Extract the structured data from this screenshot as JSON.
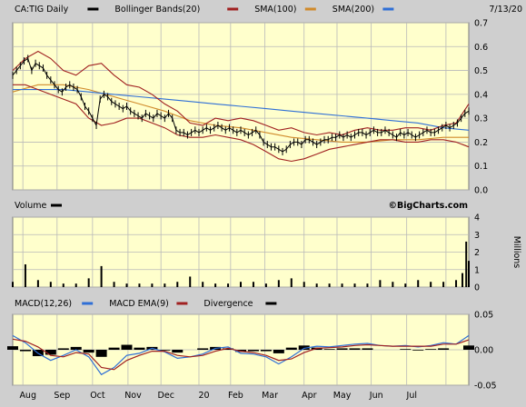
{
  "colors": {
    "background": "#cfcfcf",
    "plot_bg": "#ffffcc",
    "grid": "#b9b9b9",
    "price": "#000000",
    "bollinger": "#a02020",
    "sma100": "#d08a2a",
    "sma200": "#2f6fd6",
    "volume": "#000000",
    "macd": "#2f6fd6",
    "macd_ema": "#a02020",
    "divergence": "#000000"
  },
  "chart_data": [
    {
      "type": "line",
      "panel": "price",
      "legend": [
        {
          "label": "CA:TIG Daily",
          "color": "#000000"
        },
        {
          "label": "Bollinger Bands(20)",
          "color": "#a02020"
        },
        {
          "label": "SMA(100)",
          "color": "#d08a2a"
        },
        {
          "label": "SMA(200)",
          "color": "#2f6fd6"
        }
      ],
      "date_label": "7/13/20",
      "watermark": "©BigCharts.com",
      "y_ticks": [
        "0.7",
        "0.6",
        "0.5",
        "0.4",
        "0.3",
        "0.2",
        "0.1",
        "0.0"
      ],
      "ylim": [
        0.0,
        0.7
      ],
      "x_ticks": [
        "Aug",
        "Sep",
        "Oct",
        "Nov",
        "Dec",
        "20",
        "Feb",
        "Mar",
        "Apr",
        "May",
        "Jun",
        "Jul"
      ],
      "grid": true,
      "series": [
        {
          "name": "CA:TIG Daily",
          "x": [
            0,
            3,
            6,
            9,
            12,
            15,
            18,
            21,
            24,
            27,
            30,
            33,
            36,
            39,
            42,
            45,
            48,
            51,
            54,
            57,
            60,
            63,
            66,
            69,
            72,
            75,
            78,
            81,
            84,
            87,
            90,
            93,
            96,
            99,
            102,
            105,
            108,
            111,
            114,
            117,
            120,
            123,
            126,
            129,
            132,
            135,
            138,
            141,
            144,
            147,
            150,
            153,
            156,
            159,
            162,
            165,
            168,
            171,
            174,
            177,
            180,
            183,
            186,
            189,
            192,
            195,
            198,
            201,
            204,
            207,
            210,
            213,
            216,
            219,
            222,
            225,
            228,
            231,
            234,
            237,
            240,
            243,
            246,
            249,
            252,
            255,
            258,
            261,
            264,
            267,
            270,
            273,
            276,
            279,
            282,
            285,
            288,
            291,
            294,
            297,
            300,
            303,
            306,
            309,
            312,
            315,
            318,
            321,
            324,
            327,
            330,
            333,
            336,
            339,
            342,
            345,
            348,
            351,
            354,
            357,
            360
          ],
          "y": [
            0.48,
            0.5,
            0.52,
            0.54,
            0.55,
            0.5,
            0.53,
            0.52,
            0.51,
            0.48,
            0.46,
            0.44,
            0.42,
            0.41,
            0.43,
            0.44,
            0.43,
            0.42,
            0.39,
            0.35,
            0.33,
            0.3,
            0.27,
            0.38,
            0.4,
            0.39,
            0.37,
            0.36,
            0.35,
            0.34,
            0.35,
            0.33,
            0.32,
            0.31,
            0.3,
            0.32,
            0.31,
            0.3,
            0.32,
            0.31,
            0.3,
            0.32,
            0.3,
            0.25,
            0.24,
            0.24,
            0.23,
            0.24,
            0.25,
            0.24,
            0.25,
            0.26,
            0.25,
            0.26,
            0.27,
            0.26,
            0.25,
            0.26,
            0.25,
            0.24,
            0.25,
            0.24,
            0.23,
            0.24,
            0.25,
            0.23,
            0.2,
            0.19,
            0.18,
            0.18,
            0.17,
            0.16,
            0.17,
            0.19,
            0.2,
            0.2,
            0.19,
            0.21,
            0.21,
            0.2,
            0.19,
            0.2,
            0.21,
            0.21,
            0.22,
            0.22,
            0.23,
            0.22,
            0.23,
            0.22,
            0.23,
            0.24,
            0.24,
            0.23,
            0.24,
            0.25,
            0.24,
            0.24,
            0.25,
            0.24,
            0.23,
            0.22,
            0.24,
            0.23,
            0.24,
            0.23,
            0.22,
            0.23,
            0.24,
            0.25,
            0.24,
            0.24,
            0.25,
            0.26,
            0.27,
            0.26,
            0.27,
            0.28,
            0.3,
            0.32,
            0.33
          ]
        },
        {
          "name": "Bollinger Bands(20) upper",
          "x": [
            0,
            10,
            20,
            30,
            40,
            50,
            60,
            70,
            80,
            90,
            100,
            110,
            120,
            130,
            140,
            150,
            160,
            170,
            180,
            190,
            200,
            210,
            220,
            230,
            240,
            250,
            260,
            270,
            280,
            290,
            300,
            310,
            320,
            330,
            340,
            350,
            360
          ],
          "y": [
            0.5,
            0.55,
            0.58,
            0.55,
            0.5,
            0.48,
            0.52,
            0.53,
            0.48,
            0.44,
            0.43,
            0.4,
            0.36,
            0.33,
            0.28,
            0.27,
            0.3,
            0.29,
            0.3,
            0.29,
            0.27,
            0.25,
            0.26,
            0.24,
            0.23,
            0.24,
            0.23,
            0.25,
            0.26,
            0.25,
            0.25,
            0.26,
            0.26,
            0.25,
            0.27,
            0.28,
            0.36
          ]
        },
        {
          "name": "Bollinger Bands(20) lower",
          "x": [
            0,
            10,
            20,
            30,
            40,
            50,
            60,
            70,
            80,
            90,
            100,
            110,
            120,
            130,
            140,
            150,
            160,
            170,
            180,
            190,
            200,
            210,
            220,
            230,
            240,
            250,
            260,
            270,
            280,
            290,
            300,
            310,
            320,
            330,
            340,
            350,
            360
          ],
          "y": [
            0.44,
            0.44,
            0.42,
            0.4,
            0.38,
            0.36,
            0.3,
            0.27,
            0.28,
            0.3,
            0.3,
            0.28,
            0.26,
            0.23,
            0.22,
            0.22,
            0.23,
            0.22,
            0.21,
            0.19,
            0.16,
            0.13,
            0.12,
            0.13,
            0.15,
            0.17,
            0.18,
            0.19,
            0.2,
            0.21,
            0.21,
            0.2,
            0.2,
            0.21,
            0.21,
            0.2,
            0.18
          ]
        },
        {
          "name": "SMA(100)",
          "x": [
            0,
            20,
            40,
            60,
            80,
            100,
            120,
            140,
            160,
            180,
            200,
            220,
            240,
            260,
            280,
            300,
            320,
            340,
            360
          ],
          "y": [
            0.41,
            0.44,
            0.44,
            0.42,
            0.39,
            0.36,
            0.33,
            0.29,
            0.27,
            0.26,
            0.24,
            0.22,
            0.21,
            0.2,
            0.2,
            0.21,
            0.21,
            0.22,
            0.22
          ]
        },
        {
          "name": "SMA(200)",
          "x": [
            0,
            20,
            40,
            60,
            80,
            100,
            120,
            140,
            160,
            180,
            200,
            220,
            240,
            260,
            280,
            300,
            320,
            340,
            360
          ],
          "y": [
            0.42,
            0.42,
            0.42,
            0.41,
            0.4,
            0.39,
            0.38,
            0.37,
            0.36,
            0.35,
            0.34,
            0.33,
            0.32,
            0.31,
            0.3,
            0.29,
            0.28,
            0.26,
            0.25
          ]
        }
      ]
    },
    {
      "type": "bar",
      "panel": "volume",
      "title": "Volume",
      "ylabel": "Millions",
      "y_ticks": [
        "4",
        "3",
        "2",
        "1",
        "0"
      ],
      "ylim": [
        0,
        4
      ],
      "x": [
        0,
        10,
        20,
        30,
        40,
        50,
        60,
        70,
        80,
        90,
        100,
        110,
        120,
        130,
        140,
        150,
        160,
        170,
        180,
        190,
        200,
        210,
        220,
        230,
        240,
        250,
        260,
        270,
        280,
        290,
        300,
        310,
        320,
        330,
        340,
        350,
        355,
        358,
        360
      ],
      "values": [
        0.3,
        1.3,
        0.4,
        0.3,
        0.2,
        0.2,
        0.5,
        1.2,
        0.3,
        0.2,
        0.2,
        0.2,
        0.2,
        0.3,
        0.6,
        0.3,
        0.2,
        0.2,
        0.3,
        0.3,
        0.2,
        0.4,
        0.5,
        0.3,
        0.2,
        0.2,
        0.2,
        0.2,
        0.2,
        0.4,
        0.3,
        0.2,
        0.4,
        0.3,
        0.3,
        0.4,
        0.8,
        2.6,
        1.5
      ]
    },
    {
      "type": "line",
      "panel": "macd",
      "legend": [
        {
          "label": "MACD(12,26)",
          "color": "#2f6fd6"
        },
        {
          "label": "MACD EMA(9)",
          "color": "#a02020"
        },
        {
          "label": "Divergence",
          "color": "#000000"
        }
      ],
      "y_ticks": [
        "0.05",
        "0.00",
        "-0.05"
      ],
      "ylim": [
        -0.05,
        0.05
      ],
      "series": [
        {
          "name": "MACD(12,26)",
          "x": [
            0,
            10,
            20,
            30,
            40,
            50,
            60,
            70,
            80,
            90,
            100,
            110,
            120,
            130,
            140,
            150,
            160,
            170,
            180,
            190,
            200,
            210,
            220,
            230,
            240,
            250,
            260,
            270,
            280,
            290,
            300,
            310,
            320,
            330,
            340,
            350,
            360
          ],
          "y": [
            0.02,
            0.01,
            -0.005,
            -0.015,
            -0.008,
            0.0,
            -0.01,
            -0.035,
            -0.025,
            -0.008,
            -0.005,
            0.002,
            -0.003,
            -0.012,
            -0.01,
            -0.006,
            0.002,
            0.004,
            -0.005,
            -0.006,
            -0.01,
            -0.02,
            -0.01,
            0.002,
            0.005,
            0.004,
            0.006,
            0.008,
            0.009,
            0.006,
            0.005,
            0.006,
            0.004,
            0.006,
            0.01,
            0.008,
            0.02
          ]
        },
        {
          "name": "MACD EMA(9)",
          "x": [
            0,
            10,
            20,
            30,
            40,
            50,
            60,
            70,
            80,
            90,
            100,
            110,
            120,
            130,
            140,
            150,
            160,
            170,
            180,
            190,
            200,
            210,
            220,
            230,
            240,
            250,
            260,
            270,
            280,
            290,
            300,
            310,
            320,
            330,
            340,
            350,
            360
          ],
          "y": [
            0.015,
            0.012,
            0.004,
            -0.008,
            -0.01,
            -0.004,
            -0.006,
            -0.025,
            -0.028,
            -0.015,
            -0.008,
            -0.002,
            -0.002,
            -0.008,
            -0.01,
            -0.008,
            -0.002,
            0.002,
            -0.002,
            -0.004,
            -0.008,
            -0.015,
            -0.013,
            -0.004,
            0.002,
            0.003,
            0.004,
            0.006,
            0.007,
            0.006,
            0.005,
            0.005,
            0.005,
            0.005,
            0.008,
            0.008,
            0.014
          ]
        }
      ]
    }
  ]
}
